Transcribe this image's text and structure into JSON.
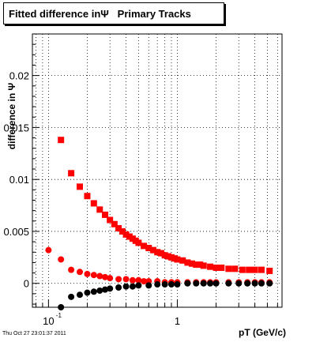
{
  "chart_data": {
    "type": "scatter",
    "title": "Fitted difference inΨ   Primary Tracks",
    "xlabel": "pT (GeV/c)",
    "ylabel": "difference in Ψ",
    "xscale": "log",
    "xlim": [
      0.075,
      6.5
    ],
    "ylim": [
      -0.0023,
      0.024
    ],
    "grid": true,
    "x_tick_labels": [
      {
        "value": 0.1,
        "base": "10",
        "exp": "-1"
      },
      {
        "value": 1,
        "base": "1",
        "exp": ""
      }
    ],
    "y_ticks": [
      0,
      0.005,
      0.01,
      0.015,
      0.02
    ],
    "y_tick_labels": [
      "0",
      "0.005",
      "0.01",
      "0.015",
      "0.02"
    ],
    "series": [
      {
        "marker": "square",
        "color": "#ff0000",
        "points": [
          [
            0.125,
            0.0138
          ],
          [
            0.15,
            0.0106
          ],
          [
            0.175,
            0.0093
          ],
          [
            0.2,
            0.0084
          ],
          [
            0.225,
            0.0077
          ],
          [
            0.25,
            0.0071
          ],
          [
            0.275,
            0.0066
          ],
          [
            0.3,
            0.0061
          ],
          [
            0.325,
            0.0057
          ],
          [
            0.35,
            0.0053
          ],
          [
            0.375,
            0.005
          ],
          [
            0.4,
            0.0047
          ],
          [
            0.425,
            0.0045
          ],
          [
            0.45,
            0.0043
          ],
          [
            0.475,
            0.0041
          ],
          [
            0.5,
            0.0039
          ],
          [
            0.55,
            0.0036
          ],
          [
            0.6,
            0.0034
          ],
          [
            0.65,
            0.0032
          ],
          [
            0.7,
            0.003
          ],
          [
            0.75,
            0.0029
          ],
          [
            0.8,
            0.0027
          ],
          [
            0.85,
            0.0026
          ],
          [
            0.9,
            0.0025
          ],
          [
            0.95,
            0.0024
          ],
          [
            1.0,
            0.0023
          ],
          [
            1.1,
            0.0022
          ],
          [
            1.2,
            0.002
          ],
          [
            1.3,
            0.0019
          ],
          [
            1.4,
            0.0018
          ],
          [
            1.5,
            0.0018
          ],
          [
            1.6,
            0.0017
          ],
          [
            1.8,
            0.0016
          ],
          [
            2.0,
            0.0015
          ],
          [
            2.2,
            0.0015
          ],
          [
            2.5,
            0.0014
          ],
          [
            2.8,
            0.0014
          ],
          [
            3.2,
            0.0013
          ],
          [
            3.6,
            0.0013
          ],
          [
            4.0,
            0.0013
          ],
          [
            4.5,
            0.0013
          ],
          [
            5.2,
            0.0012
          ]
        ]
      },
      {
        "marker": "circle",
        "color": "#ff0000",
        "points": [
          [
            0.1,
            0.0032
          ],
          [
            0.125,
            0.0023
          ],
          [
            0.15,
            0.0013
          ],
          [
            0.175,
            0.0011
          ],
          [
            0.2,
            0.0009
          ],
          [
            0.225,
            0.0008
          ],
          [
            0.25,
            0.0007
          ],
          [
            0.275,
            0.0006
          ],
          [
            0.3,
            0.0005
          ],
          [
            0.35,
            0.0004
          ],
          [
            0.4,
            0.0004
          ],
          [
            0.45,
            0.0003
          ],
          [
            0.5,
            0.0003
          ],
          [
            0.55,
            0.0002
          ],
          [
            0.6,
            0.0002
          ],
          [
            0.7,
            0.0002
          ],
          [
            0.8,
            0.0001
          ],
          [
            0.9,
            0.0001
          ],
          [
            1.0,
            0.0001
          ],
          [
            1.2,
            0.0001
          ],
          [
            1.4,
            0.0001
          ],
          [
            1.6,
            0.0001
          ],
          [
            1.8,
            0.0001
          ],
          [
            2.0,
            0.0001
          ],
          [
            2.5,
            0.0001
          ],
          [
            3.0,
            0.0001
          ],
          [
            3.5,
            0.0001
          ],
          [
            4.0,
            0.0001
          ],
          [
            4.5,
            0.0001
          ],
          [
            5.2,
            0.0001
          ]
        ]
      },
      {
        "marker": "circle",
        "color": "#000000",
        "points": [
          [
            0.125,
            -0.0023
          ],
          [
            0.15,
            -0.0013
          ],
          [
            0.175,
            -0.0011
          ],
          [
            0.2,
            -0.0009
          ],
          [
            0.225,
            -0.0008
          ],
          [
            0.25,
            -0.0007
          ],
          [
            0.275,
            -0.0006
          ],
          [
            0.3,
            -0.0005
          ],
          [
            0.35,
            -0.0004
          ],
          [
            0.4,
            -0.0003
          ],
          [
            0.45,
            -0.0003
          ],
          [
            0.5,
            -0.0002
          ],
          [
            0.6,
            -0.0002
          ],
          [
            0.7,
            -0.0001
          ],
          [
            0.8,
            -0.0001
          ],
          [
            0.9,
            -0.0001
          ],
          [
            1.0,
            -0.0001
          ],
          [
            1.2,
            0.0
          ],
          [
            1.4,
            0.0
          ],
          [
            1.6,
            0.0
          ],
          [
            1.8,
            0.0
          ],
          [
            2.0,
            0.0
          ],
          [
            2.5,
            0.0
          ],
          [
            3.0,
            0.0
          ],
          [
            3.5,
            0.0
          ],
          [
            4.0,
            0.0
          ],
          [
            4.5,
            0.0
          ],
          [
            5.2,
            0.0
          ]
        ]
      }
    ]
  },
  "footer": {
    "timestamp": "Thu Oct 27 23:01:37 2011"
  }
}
